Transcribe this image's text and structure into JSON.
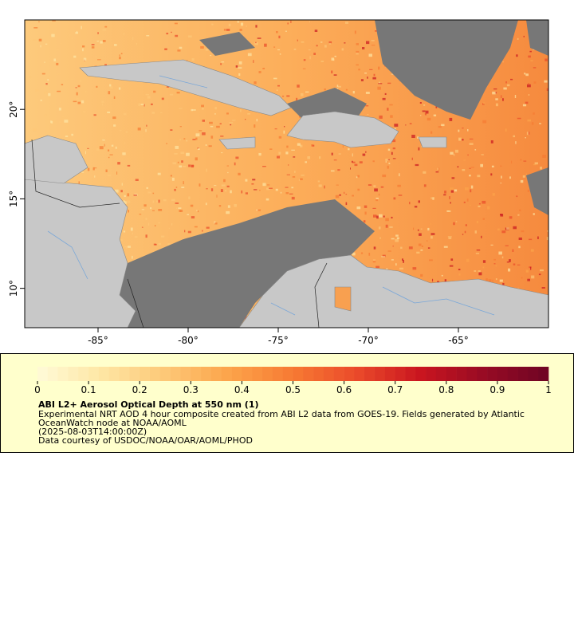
{
  "map": {
    "xlim": [
      -89.07,
      -60
    ],
    "ylim": [
      7.8,
      25
    ],
    "xticks": [
      {
        "value": -85,
        "label": "-85°"
      },
      {
        "value": -80,
        "label": "-80°"
      },
      {
        "value": -75,
        "label": "-75°"
      },
      {
        "value": -70,
        "label": "-70°"
      },
      {
        "value": -65,
        "label": "-65°"
      }
    ],
    "yticks": [
      {
        "value": 10,
        "label": "10°"
      },
      {
        "value": 15,
        "label": "15°"
      },
      {
        "value": 20,
        "label": "20°"
      }
    ]
  },
  "colorbar": {
    "clim": [
      0,
      1
    ],
    "ticks": [
      0,
      0.1,
      0.2,
      0.3,
      0.4,
      0.5,
      0.6,
      0.7,
      0.8,
      0.9,
      1
    ],
    "colors": [
      "#fffbd8",
      "#fee6a4",
      "#fdc877",
      "#fca44a",
      "#f77a33",
      "#ea4a2a",
      "#c9151f",
      "#970b24",
      "#6e0424"
    ]
  },
  "legend": {
    "title": "ABI L2+ Aerosol Optical Depth at 550 nm (1)",
    "lines": [
      "Experimental NRT AOD 4 hour composite created from ABI L2 data from GOES-19. Fields generated by Atlantic",
      "OceanWatch node at NOAA/AOML",
      "(2025-08-03T14:00:00Z)",
      "Data courtesy of USDOC/NOAA/OAR/AOML/PHOD"
    ]
  }
}
